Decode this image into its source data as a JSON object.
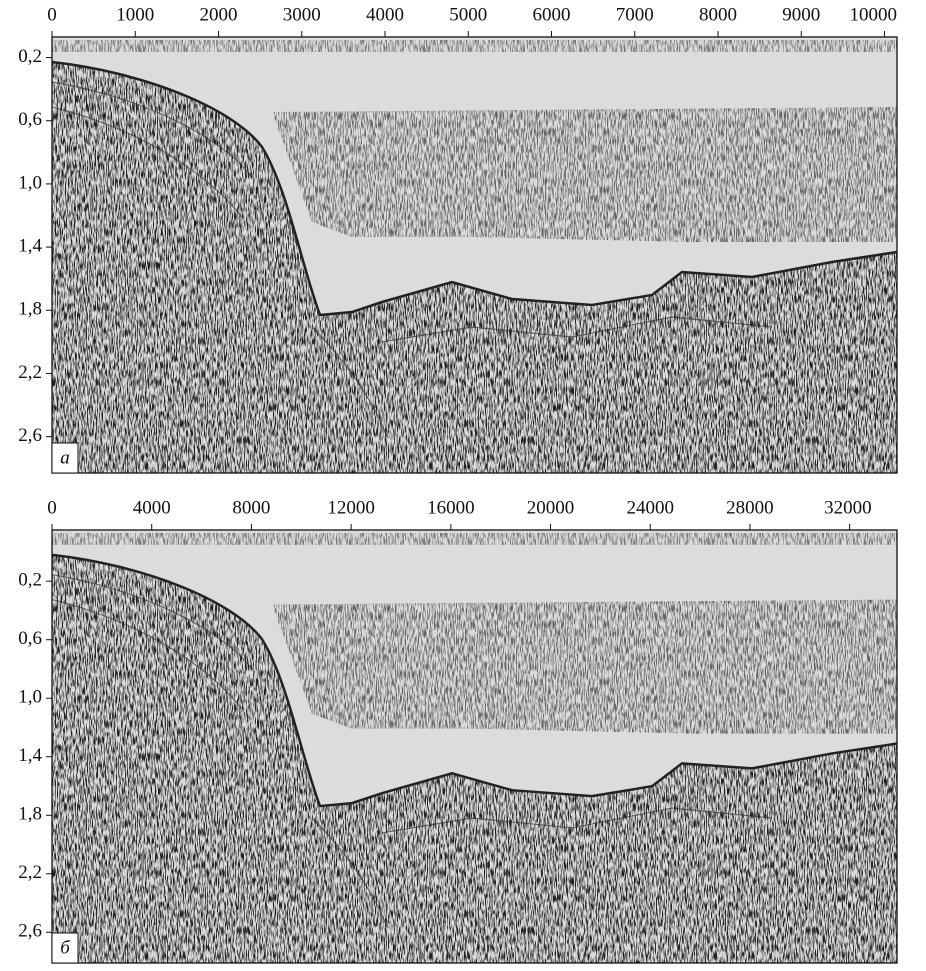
{
  "chart_data": [
    {
      "type": "seismic",
      "label": "а",
      "xlim": [
        0,
        10150
      ],
      "xticks": [
        0,
        1000,
        2000,
        3000,
        4000,
        5000,
        6000,
        7000,
        8000,
        9000,
        10000
      ],
      "ylim": [
        0.07,
        2.83
      ],
      "yticks": [
        {
          "value": 0.2,
          "label": "0,2"
        },
        {
          "value": 0.6,
          "label": "0,6"
        },
        {
          "value": 1.0,
          "label": "1,0"
        },
        {
          "value": 1.4,
          "label": "1,4"
        },
        {
          "value": 1.8,
          "label": "1,8"
        },
        {
          "value": 2.2,
          "label": "2,2"
        },
        {
          "value": 2.6,
          "label": "2,6"
        }
      ]
    },
    {
      "type": "seismic",
      "label": "б",
      "xlim": [
        0,
        33900
      ],
      "xticks": [
        0,
        4000,
        8000,
        12000,
        16000,
        20000,
        24000,
        28000,
        32000
      ],
      "ylim": [
        -0.15,
        2.81
      ],
      "yticks": [
        {
          "value": 0.2,
          "label": "0,2"
        },
        {
          "value": 0.6,
          "label": "0,6"
        },
        {
          "value": 1.0,
          "label": "1,0"
        },
        {
          "value": 1.4,
          "label": "1,4"
        },
        {
          "value": 1.8,
          "label": "1,8"
        },
        {
          "value": 2.2,
          "label": "2,2"
        },
        {
          "value": 2.6,
          "label": "2,6"
        }
      ]
    }
  ]
}
